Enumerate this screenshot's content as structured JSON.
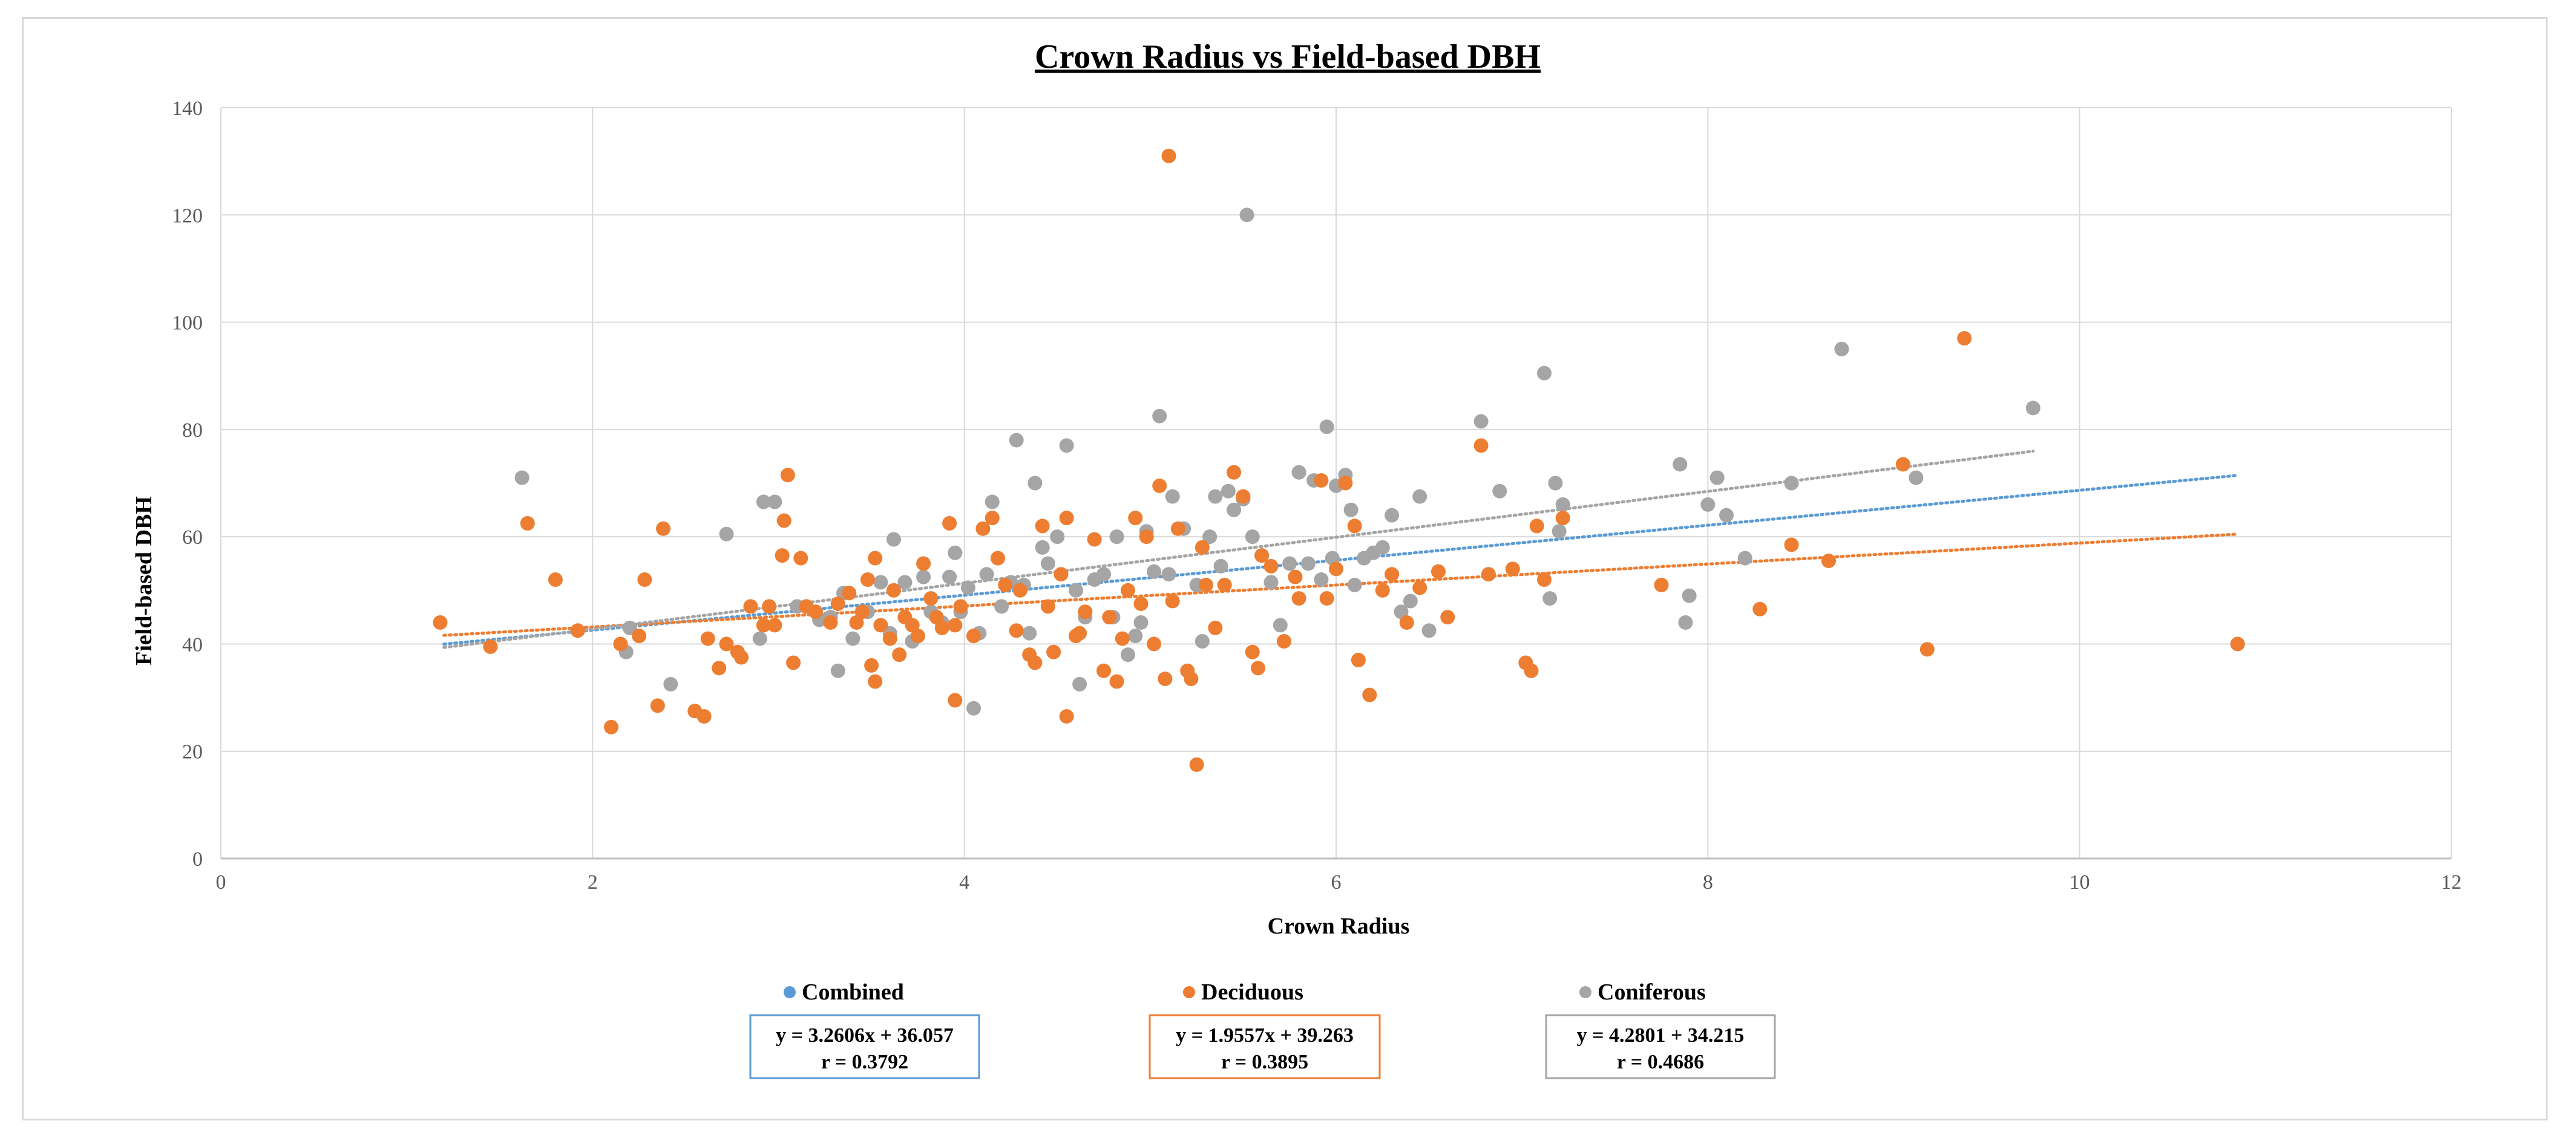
{
  "chart_data": {
    "type": "scatter",
    "title": "Crown Radius vs Field-based DBH",
    "xlabel": "Crown Radius",
    "ylabel": "Field-based DBH",
    "xlim": [
      0,
      12
    ],
    "ylim": [
      0,
      140
    ],
    "xticks": [
      0,
      2,
      4,
      6,
      8,
      10,
      12
    ],
    "yticks": [
      0,
      20,
      40,
      60,
      80,
      100,
      120,
      140
    ],
    "grid": true,
    "legend_position": "bottom",
    "series": [
      {
        "name": "Combined",
        "color": "#5b9bd5",
        "equation": "y = 3.2606x + 36.057",
        "r_text": "r = 0.3792",
        "trend": {
          "slope": 3.2606,
          "intercept": 36.057,
          "x_range": [
            1.2,
            10.85
          ]
        },
        "points": []
      },
      {
        "name": "Deciduous",
        "color": "#ed7d31",
        "equation": "y = 1.9557x + 39.263",
        "r_text": "r = 0.3895",
        "trend": {
          "slope": 1.9557,
          "intercept": 39.263,
          "x_range": [
            1.2,
            10.85
          ]
        },
        "points": [
          [
            1.18,
            44
          ],
          [
            1.45,
            39.5
          ],
          [
            1.65,
            62.5
          ],
          [
            1.8,
            52
          ],
          [
            1.92,
            42.5
          ],
          [
            2.1,
            24.5
          ],
          [
            2.15,
            40
          ],
          [
            2.25,
            41.5
          ],
          [
            2.28,
            52
          ],
          [
            2.35,
            28.5
          ],
          [
            2.38,
            61.5
          ],
          [
            2.55,
            27.5
          ],
          [
            2.6,
            26.5
          ],
          [
            2.62,
            41
          ],
          [
            2.68,
            35.5
          ],
          [
            2.72,
            40
          ],
          [
            2.78,
            38.5
          ],
          [
            2.8,
            37.5
          ],
          [
            2.85,
            47
          ],
          [
            2.92,
            43.5
          ],
          [
            2.95,
            47
          ],
          [
            2.98,
            43.5
          ],
          [
            3.02,
            56.5
          ],
          [
            3.03,
            63
          ],
          [
            3.05,
            71.5
          ],
          [
            3.08,
            36.5
          ],
          [
            3.12,
            56
          ],
          [
            3.15,
            47
          ],
          [
            3.2,
            46
          ],
          [
            3.28,
            44
          ],
          [
            3.32,
            47.5
          ],
          [
            3.38,
            49.5
          ],
          [
            3.42,
            44
          ],
          [
            3.45,
            46
          ],
          [
            3.48,
            52
          ],
          [
            3.5,
            36
          ],
          [
            3.52,
            33
          ],
          [
            3.52,
            56
          ],
          [
            3.55,
            43.5
          ],
          [
            3.6,
            41
          ],
          [
            3.62,
            50
          ],
          [
            3.65,
            38
          ],
          [
            3.68,
            45
          ],
          [
            3.72,
            43.5
          ],
          [
            3.75,
            41.5
          ],
          [
            3.78,
            55
          ],
          [
            3.82,
            48.5
          ],
          [
            3.85,
            45
          ],
          [
            3.88,
            43
          ],
          [
            3.92,
            62.5
          ],
          [
            3.95,
            43.5
          ],
          [
            3.95,
            29.5
          ],
          [
            3.98,
            47
          ],
          [
            4.05,
            41.5
          ],
          [
            4.1,
            61.5
          ],
          [
            4.15,
            63.5
          ],
          [
            4.18,
            56
          ],
          [
            4.22,
            51
          ],
          [
            4.28,
            42.5
          ],
          [
            4.3,
            50
          ],
          [
            4.35,
            38
          ],
          [
            4.38,
            36.5
          ],
          [
            4.42,
            62
          ],
          [
            4.45,
            47
          ],
          [
            4.48,
            38.5
          ],
          [
            4.52,
            53
          ],
          [
            4.55,
            63.5
          ],
          [
            4.55,
            26.5
          ],
          [
            4.6,
            41.5
          ],
          [
            4.62,
            42
          ],
          [
            4.65,
            46
          ],
          [
            4.7,
            59.5
          ],
          [
            4.75,
            35
          ],
          [
            4.78,
            45
          ],
          [
            4.82,
            33
          ],
          [
            4.85,
            41
          ],
          [
            4.88,
            50
          ],
          [
            4.92,
            63.5
          ],
          [
            4.95,
            47.5
          ],
          [
            4.98,
            60
          ],
          [
            5.02,
            40
          ],
          [
            5.05,
            69.5
          ],
          [
            5.08,
            33.5
          ],
          [
            5.1,
            131
          ],
          [
            5.12,
            48
          ],
          [
            5.15,
            61.5
          ],
          [
            5.2,
            35
          ],
          [
            5.22,
            33.5
          ],
          [
            5.25,
            17.5
          ],
          [
            5.28,
            58
          ],
          [
            5.3,
            51
          ],
          [
            5.35,
            43
          ],
          [
            5.4,
            51
          ],
          [
            5.45,
            72
          ],
          [
            5.5,
            67.5
          ],
          [
            5.55,
            38.5
          ],
          [
            5.58,
            35.5
          ],
          [
            5.6,
            56.5
          ],
          [
            5.65,
            54.5
          ],
          [
            5.72,
            40.5
          ],
          [
            5.78,
            52.5
          ],
          [
            5.8,
            48.5
          ],
          [
            5.92,
            70.5
          ],
          [
            5.95,
            48.5
          ],
          [
            6.0,
            54
          ],
          [
            6.05,
            70
          ],
          [
            6.1,
            62
          ],
          [
            6.12,
            37
          ],
          [
            6.18,
            30.5
          ],
          [
            6.25,
            50
          ],
          [
            6.3,
            53
          ],
          [
            6.38,
            44
          ],
          [
            6.45,
            50.5
          ],
          [
            6.55,
            53.5
          ],
          [
            6.6,
            45
          ],
          [
            6.78,
            77
          ],
          [
            6.82,
            53
          ],
          [
            6.95,
            54
          ],
          [
            7.02,
            36.5
          ],
          [
            7.05,
            35
          ],
          [
            7.08,
            62
          ],
          [
            7.12,
            52
          ],
          [
            7.22,
            63.5
          ],
          [
            7.75,
            51
          ],
          [
            8.28,
            46.5
          ],
          [
            8.45,
            58.5
          ],
          [
            8.65,
            55.5
          ],
          [
            9.05,
            73.5
          ],
          [
            9.18,
            39
          ],
          [
            9.38,
            97
          ],
          [
            10.85,
            40
          ]
        ]
      },
      {
        "name": "Coniferous",
        "color": "#a5a5a5",
        "equation": "y = 4.2801 + 34.215",
        "r_text": "r = 0.4686",
        "trend": {
          "slope": 4.2801,
          "intercept": 34.215,
          "x_range": [
            1.2,
            9.75
          ]
        },
        "points": [
          [
            1.62,
            71
          ],
          [
            2.18,
            38.5
          ],
          [
            2.2,
            43
          ],
          [
            2.42,
            32.5
          ],
          [
            2.72,
            60.5
          ],
          [
            2.9,
            41
          ],
          [
            2.92,
            66.5
          ],
          [
            2.98,
            66.5
          ],
          [
            3.1,
            47
          ],
          [
            3.22,
            44.5
          ],
          [
            3.28,
            45
          ],
          [
            3.32,
            35
          ],
          [
            3.35,
            49.5
          ],
          [
            3.4,
            41
          ],
          [
            3.48,
            46
          ],
          [
            3.55,
            51.5
          ],
          [
            3.6,
            42
          ],
          [
            3.62,
            59.5
          ],
          [
            3.68,
            51.5
          ],
          [
            3.72,
            40.5
          ],
          [
            3.78,
            52.5
          ],
          [
            3.82,
            46
          ],
          [
            3.88,
            44
          ],
          [
            3.92,
            52.5
          ],
          [
            3.95,
            57
          ],
          [
            3.98,
            46
          ],
          [
            4.02,
            50.5
          ],
          [
            4.05,
            28
          ],
          [
            4.08,
            42
          ],
          [
            4.12,
            53
          ],
          [
            4.15,
            66.5
          ],
          [
            4.2,
            47
          ],
          [
            4.25,
            51.5
          ],
          [
            4.28,
            78
          ],
          [
            4.32,
            51
          ],
          [
            4.35,
            42
          ],
          [
            4.38,
            70
          ],
          [
            4.42,
            58
          ],
          [
            4.45,
            55
          ],
          [
            4.5,
            60
          ],
          [
            4.55,
            77
          ],
          [
            4.6,
            50
          ],
          [
            4.62,
            32.5
          ],
          [
            4.65,
            45
          ],
          [
            4.7,
            52
          ],
          [
            4.75,
            53
          ],
          [
            4.8,
            45
          ],
          [
            4.82,
            60
          ],
          [
            4.88,
            38
          ],
          [
            4.92,
            41.5
          ],
          [
            4.95,
            44
          ],
          [
            4.98,
            61
          ],
          [
            5.02,
            53.5
          ],
          [
            5.05,
            82.5
          ],
          [
            5.1,
            53
          ],
          [
            5.12,
            67.5
          ],
          [
            5.18,
            61.5
          ],
          [
            5.25,
            51
          ],
          [
            5.28,
            40.5
          ],
          [
            5.32,
            60
          ],
          [
            5.35,
            67.5
          ],
          [
            5.38,
            54.5
          ],
          [
            5.42,
            68.5
          ],
          [
            5.45,
            65
          ],
          [
            5.5,
            67
          ],
          [
            5.52,
            120
          ],
          [
            5.55,
            60
          ],
          [
            5.6,
            56.5
          ],
          [
            5.65,
            51.5
          ],
          [
            5.7,
            43.5
          ],
          [
            5.75,
            55
          ],
          [
            5.8,
            72
          ],
          [
            5.85,
            55
          ],
          [
            5.88,
            70.5
          ],
          [
            5.92,
            52
          ],
          [
            5.95,
            80.5
          ],
          [
            5.98,
            56
          ],
          [
            6.0,
            69.5
          ],
          [
            6.05,
            71.5
          ],
          [
            6.08,
            65
          ],
          [
            6.1,
            51
          ],
          [
            6.15,
            56
          ],
          [
            6.2,
            57
          ],
          [
            6.25,
            58
          ],
          [
            6.3,
            64
          ],
          [
            6.35,
            46
          ],
          [
            6.4,
            48
          ],
          [
            6.45,
            67.5
          ],
          [
            6.5,
            42.5
          ],
          [
            6.78,
            81.5
          ],
          [
            6.88,
            68.5
          ],
          [
            7.12,
            90.5
          ],
          [
            7.15,
            48.5
          ],
          [
            7.18,
            70
          ],
          [
            7.2,
            61
          ],
          [
            7.22,
            66
          ],
          [
            7.85,
            73.5
          ],
          [
            7.88,
            44
          ],
          [
            7.9,
            49
          ],
          [
            8.0,
            66
          ],
          [
            8.05,
            71
          ],
          [
            8.1,
            64
          ],
          [
            8.2,
            56
          ],
          [
            8.45,
            70
          ],
          [
            8.72,
            95
          ],
          [
            9.12,
            71
          ],
          [
            9.75,
            84
          ]
        ]
      }
    ]
  }
}
